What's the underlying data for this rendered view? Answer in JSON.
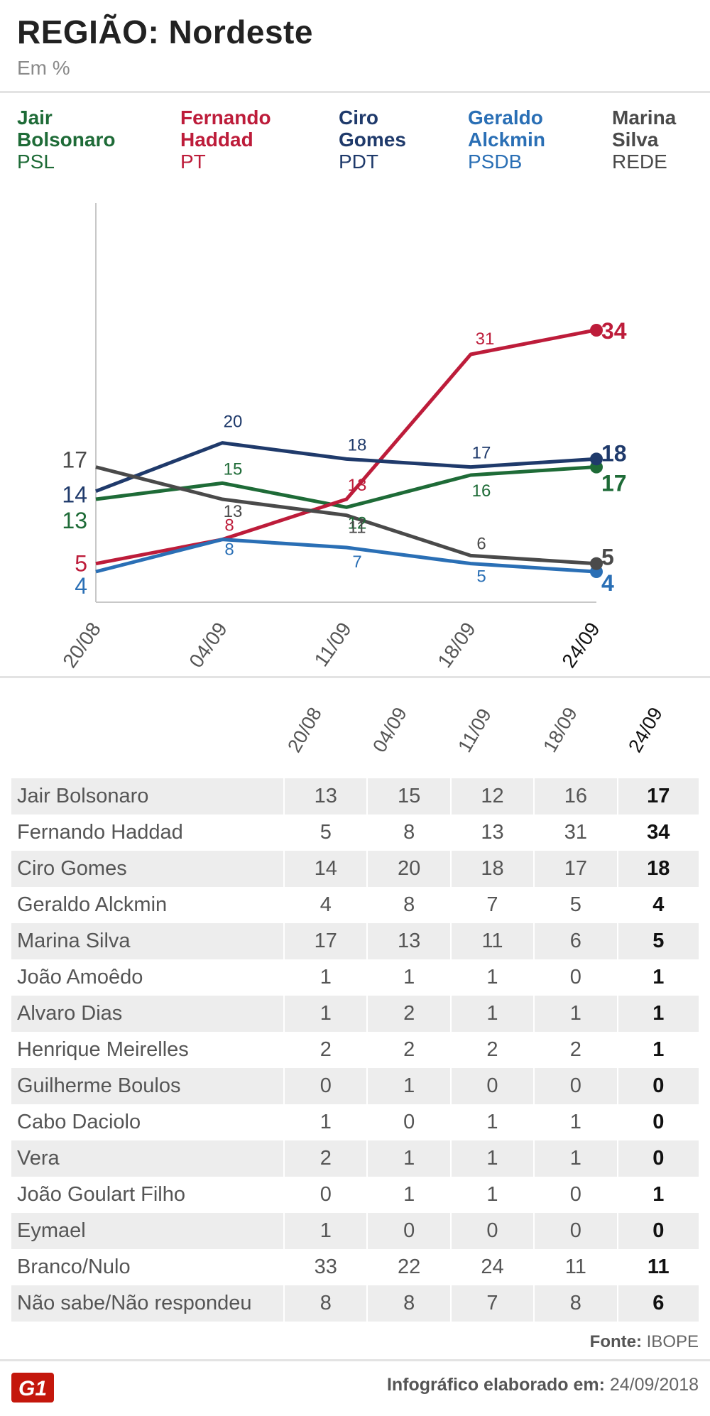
{
  "header": {
    "title": "REGIÃO: Nordeste",
    "subtitle": "Em %"
  },
  "legend": [
    {
      "name": "Jair Bolsonaro",
      "line1": "Jair",
      "line2": "Bolsonaro",
      "party": "PSL",
      "color": "#1e6b37"
    },
    {
      "name": "Fernando Haddad",
      "line1": "Fernando",
      "line2": "Haddad",
      "party": "PT",
      "color": "#bd1c3a"
    },
    {
      "name": "Ciro Gomes",
      "line1": "Ciro",
      "line2": "Gomes",
      "party": "PDT",
      "color": "#1f3a6b"
    },
    {
      "name": "Geraldo Alckmin",
      "line1": "Geraldo",
      "line2": "Alckmin",
      "party": "PSDB",
      "color": "#2a6fb5"
    },
    {
      "name": "Marina Silva",
      "line1": "Marina",
      "line2": "Silva",
      "party": "REDE",
      "color": "#4a4a4a"
    }
  ],
  "chart_data": {
    "type": "line",
    "title": "REGIÃO: Nordeste",
    "ylabel": "Em %",
    "x": [
      "20/08",
      "04/09",
      "11/09",
      "18/09",
      "24/09"
    ],
    "ylim": [
      0,
      44
    ],
    "series": [
      {
        "name": "Jair Bolsonaro",
        "color": "#1e6b37",
        "values": [
          13,
          15,
          12,
          16,
          17
        ]
      },
      {
        "name": "Fernando Haddad",
        "color": "#bd1c3a",
        "values": [
          5,
          8,
          13,
          31,
          34
        ]
      },
      {
        "name": "Ciro Gomes",
        "color": "#1f3a6b",
        "values": [
          14,
          20,
          18,
          17,
          18
        ]
      },
      {
        "name": "Geraldo Alckmin",
        "color": "#2a6fb5",
        "values": [
          4,
          8,
          7,
          5,
          4
        ]
      },
      {
        "name": "Marina Silva",
        "color": "#4a4a4a",
        "values": [
          17,
          13,
          11,
          6,
          5
        ]
      }
    ]
  },
  "table": {
    "headers": [
      "20/08",
      "04/09",
      "11/09",
      "18/09",
      "24/09"
    ],
    "rows": [
      {
        "name": "Jair Bolsonaro",
        "values": [
          "13",
          "15",
          "12",
          "16",
          "17"
        ]
      },
      {
        "name": "Fernando Haddad",
        "values": [
          "5",
          "8",
          "13",
          "31",
          "34"
        ]
      },
      {
        "name": "Ciro Gomes",
        "values": [
          "14",
          "20",
          "18",
          "17",
          "18"
        ]
      },
      {
        "name": "Geraldo Alckmin",
        "values": [
          "4",
          "8",
          "7",
          "5",
          "4"
        ]
      },
      {
        "name": "Marina Silva",
        "values": [
          "17",
          "13",
          "11",
          "6",
          "5"
        ]
      },
      {
        "name": "João Amoêdo",
        "values": [
          "1",
          "1",
          "1",
          "0",
          "1"
        ]
      },
      {
        "name": "Alvaro Dias",
        "values": [
          "1",
          "2",
          "1",
          "1",
          "1"
        ]
      },
      {
        "name": "Henrique Meirelles",
        "values": [
          "2",
          "2",
          "2",
          "2",
          "1"
        ]
      },
      {
        "name": "Guilherme Boulos",
        "values": [
          "0",
          "1",
          "0",
          "0",
          "0"
        ]
      },
      {
        "name": "Cabo Daciolo",
        "values": [
          "1",
          "0",
          "1",
          "1",
          "0"
        ]
      },
      {
        "name": "Vera",
        "values": [
          "2",
          "1",
          "1",
          "1",
          "0"
        ]
      },
      {
        "name": "João Goulart Filho",
        "values": [
          "0",
          "1",
          "1",
          "0",
          "1"
        ]
      },
      {
        "name": "Eymael",
        "values": [
          "1",
          "0",
          "0",
          "0",
          "0"
        ]
      },
      {
        "name": "Branco/Nulo",
        "values": [
          "33",
          "22",
          "24",
          "11",
          "11"
        ]
      },
      {
        "name": "Não sabe/Não respondeu",
        "values": [
          "8",
          "8",
          "7",
          "8",
          "6"
        ]
      }
    ]
  },
  "footer": {
    "source_label": "Fonte:",
    "source": "IBOPE",
    "made_label": "Infográfico elaborado em:",
    "made_date": "24/09/2018",
    "logo_text": "G1",
    "logo_color": "#c4170c"
  }
}
